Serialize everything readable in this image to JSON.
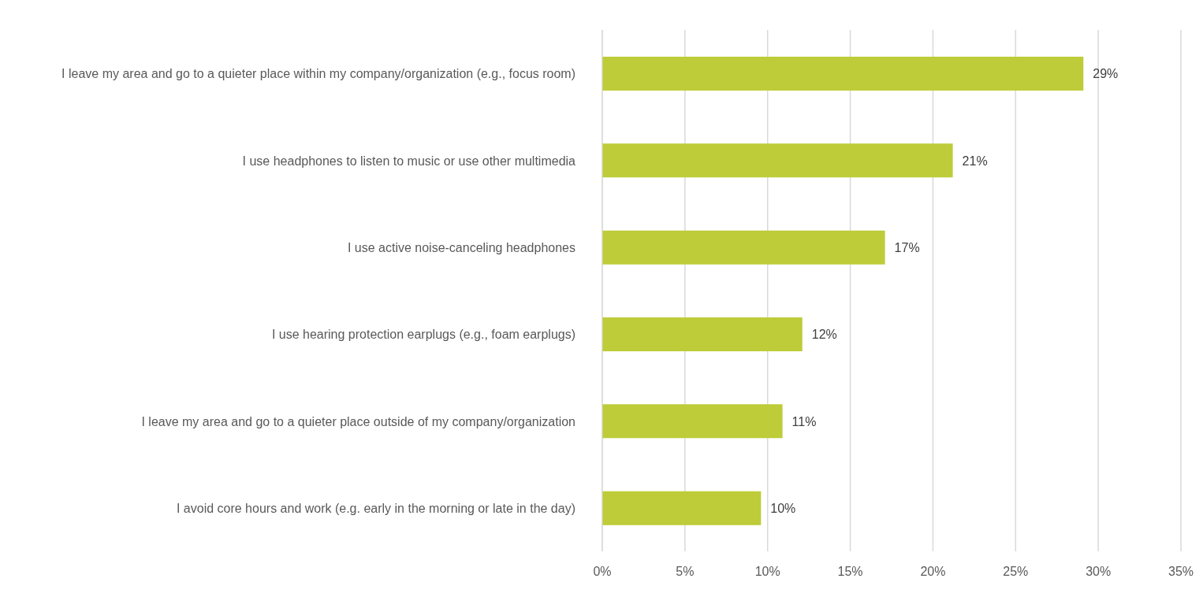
{
  "chart_data": {
    "type": "bar",
    "orientation": "horizontal",
    "categories": [
      "I leave my area and go to a quieter place within my company/organization (e.g., focus room)",
      "I use headphones to listen to music or use other multimedia",
      "I use active noise-canceling headphones",
      "I use hearing protection earplugs (e.g., foam earplugs)",
      "I leave my area and go to a quieter place outside of my company/organization",
      "I avoid core hours and work (e.g. early in the morning or late in the day)"
    ],
    "values": [
      29.1,
      21.2,
      17.1,
      12.1,
      10.9,
      9.6
    ],
    "value_labels": [
      "29%",
      "21%",
      "17%",
      "12%",
      "11%",
      "10%"
    ],
    "color": "#bdcc38",
    "xlim": [
      0,
      35
    ],
    "xticks": [
      {
        "value": 0,
        "label": "0%"
      },
      {
        "value": 5,
        "label": "5%"
      },
      {
        "value": 10,
        "label": "10%"
      },
      {
        "value": 15,
        "label": "15%"
      },
      {
        "value": 20,
        "label": "20%"
      },
      {
        "value": 25,
        "label": "25%"
      },
      {
        "value": 30,
        "label": "30%"
      },
      {
        "value": 35,
        "label": "35%"
      }
    ],
    "grid": "x",
    "legend": false
  }
}
